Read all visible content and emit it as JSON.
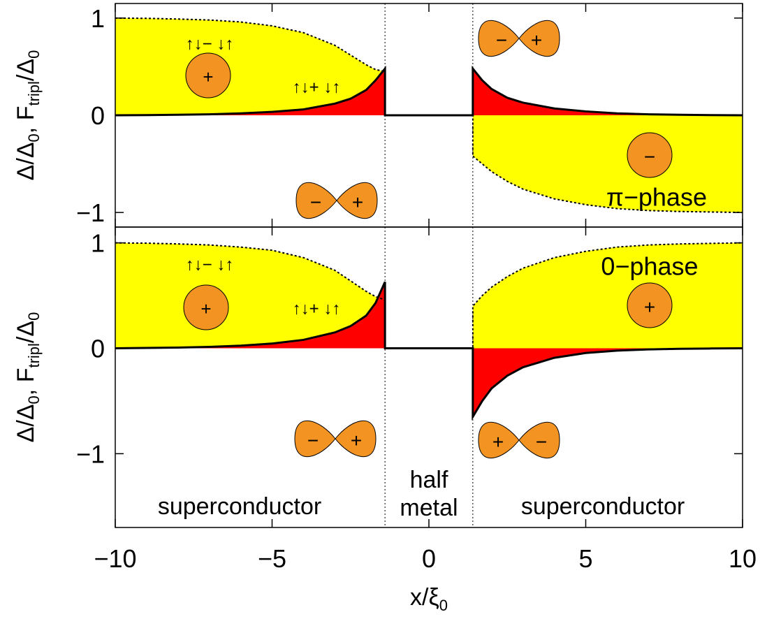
{
  "chart_data": [
    {
      "type": "line",
      "x": [
        -10,
        -9,
        -8,
        -7,
        -6,
        -5,
        -4,
        -3,
        -2.5,
        -2,
        -1.7,
        -1.4,
        -1.4,
        1.4,
        1.4,
        1.7,
        2,
        2.5,
        3,
        4,
        5,
        6,
        7,
        8,
        9,
        10
      ],
      "xlim": [
        -10,
        10
      ],
      "ylim": [
        -1.15,
        1.15
      ],
      "yticks": [
        {
          "value": -1,
          "label": "−1"
        },
        0,
        1
      ],
      "ylabel": [
        "Δ/Δ",
        "0",
        ", F",
        "tripl",
        "/Δ",
        "0"
      ],
      "boundaries": [
        -1.4,
        1.4
      ],
      "series": [
        {
          "color": "#000000",
          "fill": "#ffff00",
          "dash": "dotted",
          "values": [
            1.0,
            0.997,
            0.99,
            0.98,
            0.96,
            0.92,
            0.85,
            0.72,
            0.62,
            0.52,
            0.47,
            0.45,
            0,
            0,
            -0.42,
            -0.5,
            -0.58,
            -0.68,
            -0.76,
            -0.86,
            -0.92,
            -0.96,
            -0.98,
            -0.99,
            -0.995,
            -1.0
          ]
        },
        {
          "color": "#000000",
          "fill": "#ff0000",
          "dash": "solid",
          "values": [
            0,
            0.002,
            0.005,
            0.01,
            0.02,
            0.035,
            0.06,
            0.12,
            0.17,
            0.26,
            0.36,
            0.48,
            0,
            0,
            0.48,
            0.36,
            0.27,
            0.18,
            0.13,
            0.07,
            0.04,
            0.02,
            0.01,
            0.005,
            0.002,
            0
          ]
        }
      ],
      "annotations": [
        "↑↓− ↓↑",
        "+",
        "↑↓+ ↓↑",
        "−",
        "+",
        "−",
        "+",
        "−",
        "π−phase"
      ]
    },
    {
      "type": "line",
      "x": [
        -10,
        -9,
        -8,
        -7,
        -6,
        -5,
        -4,
        -3,
        -2.5,
        -2,
        -1.7,
        -1.4,
        -1.4,
        1.4,
        1.4,
        1.7,
        2,
        2.5,
        3,
        4,
        5,
        6,
        7,
        8,
        9,
        10
      ],
      "xlim": [
        -10,
        10
      ],
      "ylim": [
        -1.7,
        1.15
      ],
      "xticks": [
        {
          "value": -10,
          "label": "−10"
        },
        {
          "value": -5,
          "label": "−5"
        },
        0,
        5,
        10
      ],
      "yticks": [
        {
          "value": -1,
          "label": "−1"
        },
        0,
        1
      ],
      "xlabel": [
        "x/ξ",
        "0"
      ],
      "ylabel": [
        "Δ/Δ",
        "0",
        ", F",
        "tripl",
        "/Δ",
        "0"
      ],
      "boundaries": [
        -1.4,
        1.4
      ],
      "series": [
        {
          "color": "#000000",
          "fill": "#ffff00",
          "dash": "dotted",
          "values": [
            1.0,
            0.997,
            0.99,
            0.98,
            0.96,
            0.93,
            0.86,
            0.74,
            0.64,
            0.54,
            0.49,
            0.46,
            0,
            0,
            0.4,
            0.5,
            0.58,
            0.68,
            0.76,
            0.86,
            0.92,
            0.96,
            0.98,
            0.99,
            0.995,
            1.0
          ]
        },
        {
          "color": "#000000",
          "fill": "#ff0000",
          "dash": "solid",
          "values": [
            0,
            0.003,
            0.007,
            0.013,
            0.025,
            0.045,
            0.08,
            0.15,
            0.21,
            0.31,
            0.43,
            0.63,
            0,
            0,
            -0.65,
            -0.5,
            -0.38,
            -0.26,
            -0.18,
            -0.09,
            -0.045,
            -0.022,
            -0.011,
            -0.005,
            -0.002,
            0
          ]
        }
      ],
      "annotations": [
        "↑↓− ↓↑",
        "+",
        "↑↓+ ↓↑",
        "0−phase",
        "+",
        "−",
        "+",
        "+",
        "−",
        "superconductor",
        "half",
        "metal",
        "superconductor"
      ]
    }
  ]
}
